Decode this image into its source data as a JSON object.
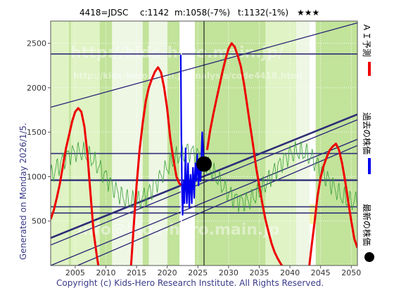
{
  "header": {
    "code": "4418=JDSC",
    "current": "c:1142",
    "median": "m:1058(-7%)",
    "target": "t:1132(-1%)",
    "stars": "★★★"
  },
  "side_label": "Generated on Monday 2026/1/5.",
  "footer": "Copyright (c) Kids-Hero Research Institute. All Rights Reserved.",
  "watermarks": {
    "line1": "http://kids-hero.main.jp/",
    "line2": "http://kids-hero.main.jp/analysis/code4418.html",
    "line3": "info@kids-hero.main.jp"
  },
  "legend": {
    "forecast": "ＡＩ予測",
    "past": "過去の株価",
    "latest": "最新の株価"
  },
  "colors": {
    "background_green": "#c2e39a",
    "light_band": "#dff3c4",
    "pale_band": "#eef7e4",
    "white_band": "#ffffff",
    "yellow_band": "#f3f5a8",
    "forecast_red": "#ee0000",
    "past_blue": "#0000ee",
    "thin_green": "#3aa03a",
    "trend_navy": "#2e2e78",
    "latest_dot": "#000000"
  },
  "chart_data": {
    "type": "line",
    "xlim": [
      2001,
      2051
    ],
    "ylim": [
      0,
      2750
    ],
    "xticks": [
      2005,
      2010,
      2015,
      2020,
      2025,
      2030,
      2035,
      2040,
      2045,
      2050
    ],
    "yticks": [
      500,
      1000,
      1500,
      2000,
      2500
    ],
    "grid": true,
    "legend_position": "right",
    "horizontal_levels": [
      2380,
      1260,
      960,
      660,
      590
    ],
    "vertical_markers": [
      2022.3,
      2026.0
    ],
    "trend_lines": [
      {
        "from": [
          2001,
          1780
        ],
        "to": [
          2051,
          2730
        ]
      },
      {
        "from": [
          2001,
          310
        ],
        "to": [
          2051,
          1700
        ],
        "bold": true
      },
      {
        "from": [
          2001,
          230
        ],
        "to": [
          2051,
          1640
        ]
      },
      {
        "from": [
          2001,
          0
        ],
        "to": [
          2051,
          1420
        ]
      },
      {
        "from": [
          2001,
          -130
        ],
        "to": [
          2051,
          1350
        ]
      }
    ],
    "shaded_bands": [
      {
        "from": 2001,
        "to": 2004,
        "tone": "light"
      },
      {
        "from": 2004.3,
        "to": 2009,
        "tone": "light"
      },
      {
        "from": 2011,
        "to": 2016,
        "tone": "pale"
      },
      {
        "from": 2017,
        "to": 2020,
        "tone": "pale"
      },
      {
        "from": 2022,
        "to": 2024.5,
        "tone": "white"
      },
      {
        "from": 2036,
        "to": 2041,
        "tone": "light"
      },
      {
        "from": 2041,
        "to": 2043.5,
        "tone": "pale"
      },
      {
        "from": 2043.2,
        "to": 2044.2,
        "tone": "white"
      },
      {
        "from": 2043.2,
        "to": 2044.2,
        "tone": "yellow",
        "y_range": [
          470,
          690
        ]
      }
    ],
    "series": [
      {
        "role": "forecast",
        "color": "#ee0000",
        "x": [
          2001,
          2001.5,
          2002,
          2002.5,
          2003,
          2003.5,
          2004,
          2004.5,
          2005,
          2005.5,
          2006,
          2006.5,
          2007,
          2007.5,
          2008,
          2008.5,
          2009,
          2014,
          2014.5,
          2015,
          2015.5,
          2016,
          2016.5,
          2017,
          2017.5,
          2018,
          2018.5,
          2019,
          2019.5,
          2020,
          2020.5,
          2021,
          2021.5,
          2022,
          2022.5,
          2026.5,
          2027,
          2027.5,
          2028,
          2028.5,
          2029,
          2029.5,
          2030,
          2030.5,
          2031,
          2031.5,
          2032,
          2032.5,
          2033,
          2033.5,
          2034,
          2034.5,
          2035,
          2035.5,
          2036,
          2036.5,
          2037,
          2037.5,
          2038,
          2038.5,
          2039,
          2039.5,
          2040,
          2043,
          2043.5,
          2044,
          2044.5,
          2045,
          2045.5,
          2046,
          2046.5,
          2047,
          2047.5,
          2048,
          2048.5,
          2049,
          2049.5,
          2050,
          2050.5,
          2051
        ],
        "y": [
          520,
          620,
          760,
          920,
          1120,
          1320,
          1470,
          1620,
          1730,
          1770,
          1730,
          1560,
          1250,
          800,
          380,
          120,
          -100,
          -100,
          400,
          900,
          1300,
          1600,
          1850,
          2000,
          2100,
          2180,
          2230,
          2170,
          2000,
          1760,
          1430,
          1200,
          1000,
          920,
          900,
          1300,
          1520,
          1700,
          1860,
          2020,
          2180,
          2320,
          2440,
          2500,
          2460,
          2360,
          2240,
          2050,
          1820,
          1580,
          1350,
          1100,
          900,
          700,
          520,
          380,
          250,
          150,
          80,
          20,
          -30,
          -70,
          -100,
          -100,
          200,
          480,
          780,
          990,
          1120,
          1220,
          1300,
          1340,
          1370,
          1300,
          1150,
          950,
          720,
          500,
          300,
          200
        ]
      },
      {
        "role": "past",
        "color": "#0000ee",
        "x": [
          2022.2,
          2022.3,
          2022.4,
          2022.5,
          2022.6,
          2022.7,
          2022.8,
          2022.9,
          2023.0,
          2023.1,
          2023.2,
          2023.3,
          2023.4,
          2023.5,
          2023.6,
          2023.7,
          2023.8,
          2023.9,
          2024.0,
          2024.1,
          2024.2,
          2024.3,
          2024.4,
          2024.5,
          2024.6,
          2024.7,
          2024.8,
          2024.9,
          2025.0,
          2025.1,
          2025.2,
          2025.3,
          2025.4,
          2025.5,
          2025.6,
          2025.7,
          2025.8,
          2025.9,
          2026.0
        ],
        "y": [
          2370,
          1500,
          900,
          570,
          780,
          950,
          700,
          1050,
          1320,
          860,
          700,
          980,
          1150,
          830,
          650,
          900,
          1020,
          850,
          700,
          950,
          1100,
          900,
          760,
          1000,
          1150,
          950,
          1080,
          1250,
          1050,
          900,
          1100,
          1200,
          950,
          1050,
          1300,
          1500,
          1350,
          1200,
          1142
        ]
      },
      {
        "role": "latest",
        "color": "#000000",
        "x": [
          2026.0
        ],
        "y": [
          1142
        ]
      }
    ]
  }
}
